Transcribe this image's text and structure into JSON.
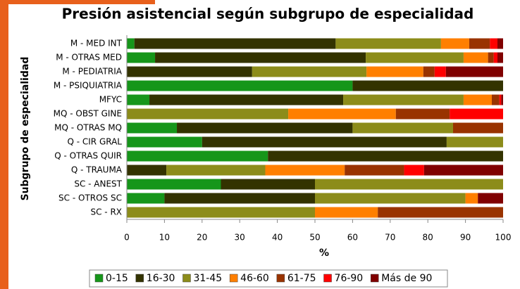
{
  "chart_data": {
    "type": "stacked_bar_horizontal",
    "title": "Presión asistencial según subgrupo de especialidad",
    "x_label": "%",
    "y_label": "Subgrupo de especialidad",
    "categories": [
      "M - MED INT",
      "M - OTRAS MED",
      "M - PEDIATRIA",
      "M - PSIQUIATRIA",
      "MFYC",
      "MQ - OBST GINE",
      "MQ - OTRAS MQ",
      "Q - CIR GRAL",
      "Q - OTRAS QUIR",
      "Q - TRAUMA",
      "SC - ANEST",
      "SC - OTROS SC",
      "SC - RX"
    ],
    "series": [
      {
        "name": "0-15",
        "color": "#16961a",
        "values": [
          2,
          7.5,
          0,
          60,
          6,
          0,
          13.3,
          20,
          37.5,
          0,
          25,
          10,
          0
        ]
      },
      {
        "name": "16-30",
        "color": "#333300",
        "values": [
          53.5,
          56,
          33.3,
          40,
          51.5,
          0,
          46.7,
          65,
          62.5,
          10.5,
          25,
          40,
          0
        ]
      },
      {
        "name": "31-45",
        "color": "#8c8c1a",
        "values": [
          28,
          26,
          30.4,
          0,
          32,
          42.9,
          26.7,
          15,
          0,
          26.3,
          50,
          40,
          50
        ]
      },
      {
        "name": "46-60",
        "color": "#ff7f00",
        "values": [
          7.5,
          6.5,
          15.1,
          0,
          7.5,
          28.6,
          0,
          0,
          0,
          21.1,
          0,
          3.3,
          16.7
        ]
      },
      {
        "name": "61-75",
        "color": "#993300",
        "values": [
          5.5,
          1.5,
          3,
          0,
          2,
          14.3,
          13.3,
          0,
          0,
          15.8,
          0,
          0,
          33.3
        ]
      },
      {
        "name": "76-90",
        "color": "#ff0000",
        "values": [
          2,
          1,
          3,
          0,
          0.5,
          14.2,
          0,
          0,
          0,
          5.3,
          0,
          0,
          0
        ]
      },
      {
        "name": "Más de 90",
        "color": "#800000",
        "values": [
          1.5,
          1.5,
          15.2,
          0,
          0.5,
          0,
          0,
          0,
          0,
          21,
          0,
          6.7,
          0
        ]
      }
    ],
    "xlim": [
      0,
      100
    ],
    "xticks": [
      0,
      10,
      20,
      30,
      40,
      50,
      60,
      70,
      80,
      90,
      100
    ],
    "legend": "bottom"
  }
}
